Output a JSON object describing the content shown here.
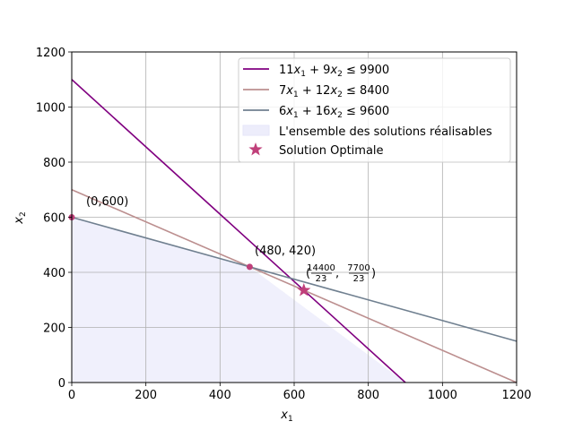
{
  "chart_data": {
    "type": "line",
    "xlabel_base": "x",
    "xlabel_sub": "1",
    "ylabel_base": "x",
    "ylabel_sub": "2",
    "xlim": [
      0,
      1200
    ],
    "ylim": [
      0,
      1200
    ],
    "xticks": [
      "0",
      "200",
      "400",
      "600",
      "800",
      "1000",
      "1200"
    ],
    "yticks": [
      "0",
      "200",
      "400",
      "600",
      "800",
      "1000",
      "1200"
    ],
    "grid": true,
    "legend_position": "top-right",
    "series": [
      {
        "name": "11x₁ + 9x₂ ≤ 9900",
        "color": "#800080",
        "x": [
          0,
          900
        ],
        "y": [
          1100,
          0
        ],
        "legend_parts": {
          "a": "11",
          "b": "9",
          "rhs": "9900"
        }
      },
      {
        "name": "7x₁ + 12x₂ ≤ 8400",
        "color": "#bc8f8f",
        "x": [
          0,
          1200
        ],
        "y": [
          700,
          0
        ],
        "legend_parts": {
          "a": "7",
          "b": "12",
          "rhs": "8400"
        }
      },
      {
        "name": "6x₁ + 16x₂ ≤ 9600",
        "color": "#708090",
        "x": [
          0,
          1200
        ],
        "y": [
          600,
          150
        ],
        "legend_parts": {
          "a": "6",
          "b": "16",
          "rhs": "9600"
        }
      }
    ],
    "feasible_region": {
      "name": "L'ensemble des solutions réalisables",
      "color": "#e6e6fa",
      "polygon": [
        [
          0,
          0
        ],
        [
          0,
          600
        ],
        [
          480,
          420
        ],
        [
          900,
          0
        ]
      ]
    },
    "points": [
      {
        "x": 0,
        "y": 600,
        "label": "(0,600)",
        "color": "#c0407a"
      },
      {
        "x": 480,
        "y": 420,
        "label": "(480, 420)",
        "color": "#c0407a"
      }
    ],
    "optimal": {
      "name": "Solution Optimale",
      "x": 626.09,
      "y": 334.78,
      "color": "#c0407a",
      "label_parts": {
        "num1": "14400",
        "den1": "23",
        "num2": "7700",
        "den2": "23"
      }
    }
  }
}
